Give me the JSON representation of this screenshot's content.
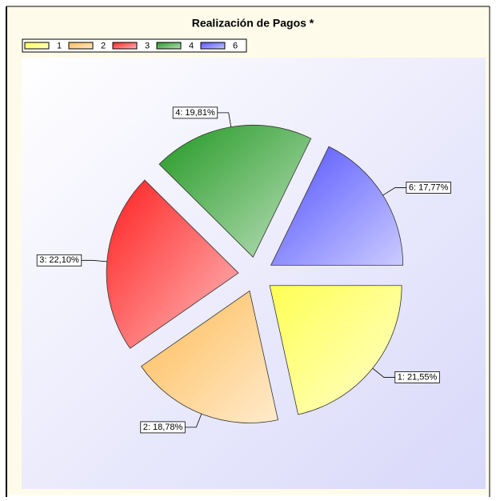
{
  "chart_data": {
    "type": "pie",
    "title": "Realización de Pagos *",
    "categories": [
      "1",
      "2",
      "3",
      "4",
      "6"
    ],
    "values": [
      21.55,
      18.78,
      22.1,
      19.81,
      17.77
    ],
    "value_labels": [
      "1: 21,55%",
      "2: 18,78%",
      "3: 22,10%",
      "4: 19,81%",
      "6: 17,77%"
    ],
    "colors": [
      "#ffff55",
      "#ffbb55",
      "#ff2020",
      "#229922",
      "#5050ff"
    ],
    "legend": "top-left"
  }
}
